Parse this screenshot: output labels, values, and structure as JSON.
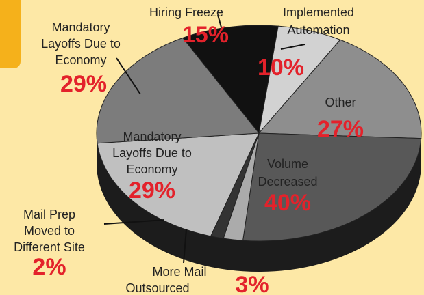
{
  "chart_data": {
    "type": "pie",
    "categories": [
      "Hiring Freeze",
      "Implemented Automation",
      "Other",
      "Volume Decreased",
      "More Mail Outsourced",
      "Mail Prep Moved to Different Site",
      "Mandatory Layoffs Due to Economy",
      "Mandatory Layoffs Due to Economy"
    ],
    "values": [
      15,
      10,
      27,
      40,
      3,
      2,
      29,
      29
    ],
    "value_labels": [
      "15%",
      "10%",
      "27%",
      "40%",
      "3%",
      "2%",
      "29%",
      "29%"
    ],
    "colors": [
      "#111111",
      "#d2d2d2",
      "#8e8e8e",
      "#585858",
      "#ababab",
      "#333333",
      "#c0c0c0",
      "#7c7c7c"
    ]
  }
}
